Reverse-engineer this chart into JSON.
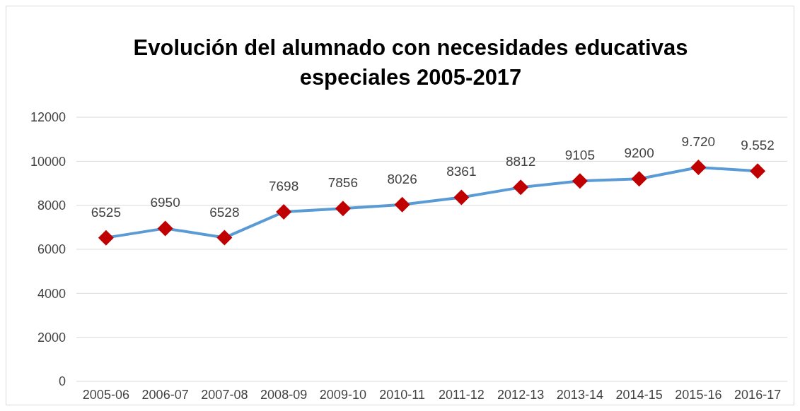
{
  "chart_data": {
    "type": "line",
    "title": "Evolución del alumnado con necesidades educativas especiales 2005-2017",
    "categories": [
      "2005-06",
      "2006-07",
      "2007-08",
      "2008-09",
      "2009-10",
      "2010-11",
      "2011-12",
      "2012-13",
      "2013-14",
      "2014-15",
      "2015-16",
      "2016-17"
    ],
    "series": [
      {
        "color": "#5b9bd5",
        "colors": [
          "#c00000",
          "#c00000",
          "#c00000",
          "#c00000",
          "#c00000",
          "#c00000",
          "#c00000",
          "#c00000",
          "#c00000",
          "#c00000",
          "#c00000",
          "#c00000"
        ],
        "values": [
          6525,
          6950,
          6528,
          7698,
          7856,
          8026,
          8361,
          8812,
          9105,
          9200,
          9720,
          9552
        ],
        "value_labels": [
          "6525",
          "6950",
          "6528",
          "7698",
          "7856",
          "8026",
          "8361",
          "8812",
          "9105",
          "9200",
          "9.720",
          "9.552"
        ]
      }
    ],
    "ylim": [
      0,
      12000
    ],
    "yticks": [
      0,
      2000,
      4000,
      6000,
      8000,
      10000,
      12000
    ],
    "grid": "y",
    "marker": "diamond",
    "line_style": "solid"
  }
}
